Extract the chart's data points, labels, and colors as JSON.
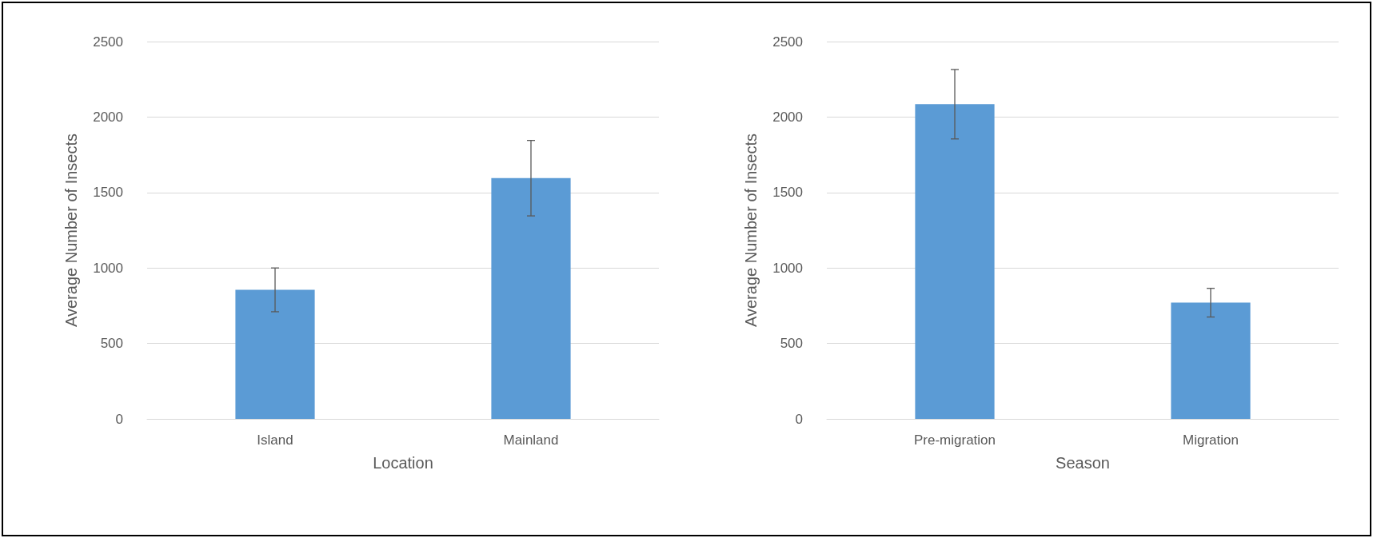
{
  "chart_data": [
    {
      "type": "bar",
      "xlabel": "Location",
      "ylabel": "Average Number of Insects",
      "categories": [
        "Island",
        "Mainland"
      ],
      "series": [
        {
          "color": "#5b9bd5",
          "values": [
            855,
            1595
          ],
          "errors": [
            145,
            250
          ]
        }
      ],
      "ylim": [
        0,
        2500
      ],
      "yticks": [
        0,
        500,
        1000,
        1500,
        2000,
        2500
      ],
      "grid": "y"
    },
    {
      "type": "bar",
      "xlabel": "Season",
      "ylabel": "Average Number of Insects",
      "categories": [
        "Pre-migration",
        "Migration"
      ],
      "series": [
        {
          "color": "#5b9bd5",
          "values": [
            2085,
            770
          ],
          "errors": [
            230,
            95
          ]
        }
      ],
      "ylim": [
        0,
        2500
      ],
      "yticks": [
        0,
        500,
        1000,
        1500,
        2000,
        2500
      ],
      "grid": "y"
    }
  ]
}
